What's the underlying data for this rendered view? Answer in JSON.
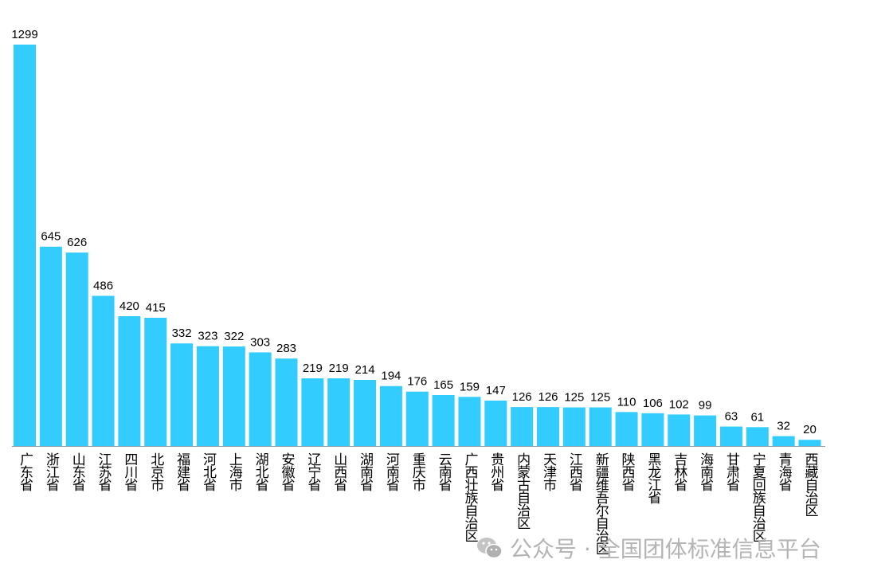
{
  "chart_data": {
    "type": "bar",
    "title": "",
    "xlabel": "",
    "ylabel": "",
    "ylim": [
      0,
      1299
    ],
    "grid": false,
    "bar_color": "#33CCFF",
    "categories": [
      "广东省",
      "浙江省",
      "山东省",
      "江苏省",
      "四川省",
      "北京市",
      "福建省",
      "河北省",
      "上海市",
      "湖北省",
      "安徽省",
      "辽宁省",
      "山西省",
      "湖南省",
      "河南省",
      "重庆市",
      "云南省",
      "广西壮族自治区",
      "贵州省",
      "内蒙古自治区",
      "天津市",
      "江西省",
      "新疆维吾尔自治区",
      "陕西省",
      "黑龙江省",
      "吉林省",
      "海南省",
      "甘肃省",
      "宁夏回族自治区",
      "青海省",
      "西藏自治区"
    ],
    "values": [
      1299,
      645,
      626,
      486,
      420,
      415,
      332,
      323,
      322,
      303,
      283,
      219,
      219,
      214,
      194,
      176,
      165,
      159,
      147,
      126,
      126,
      125,
      125,
      110,
      106,
      102,
      99,
      63,
      61,
      32,
      20
    ]
  },
  "watermark": {
    "text": "公众号 · 全国团体标准信息平台",
    "icon": "wechat-icon"
  }
}
